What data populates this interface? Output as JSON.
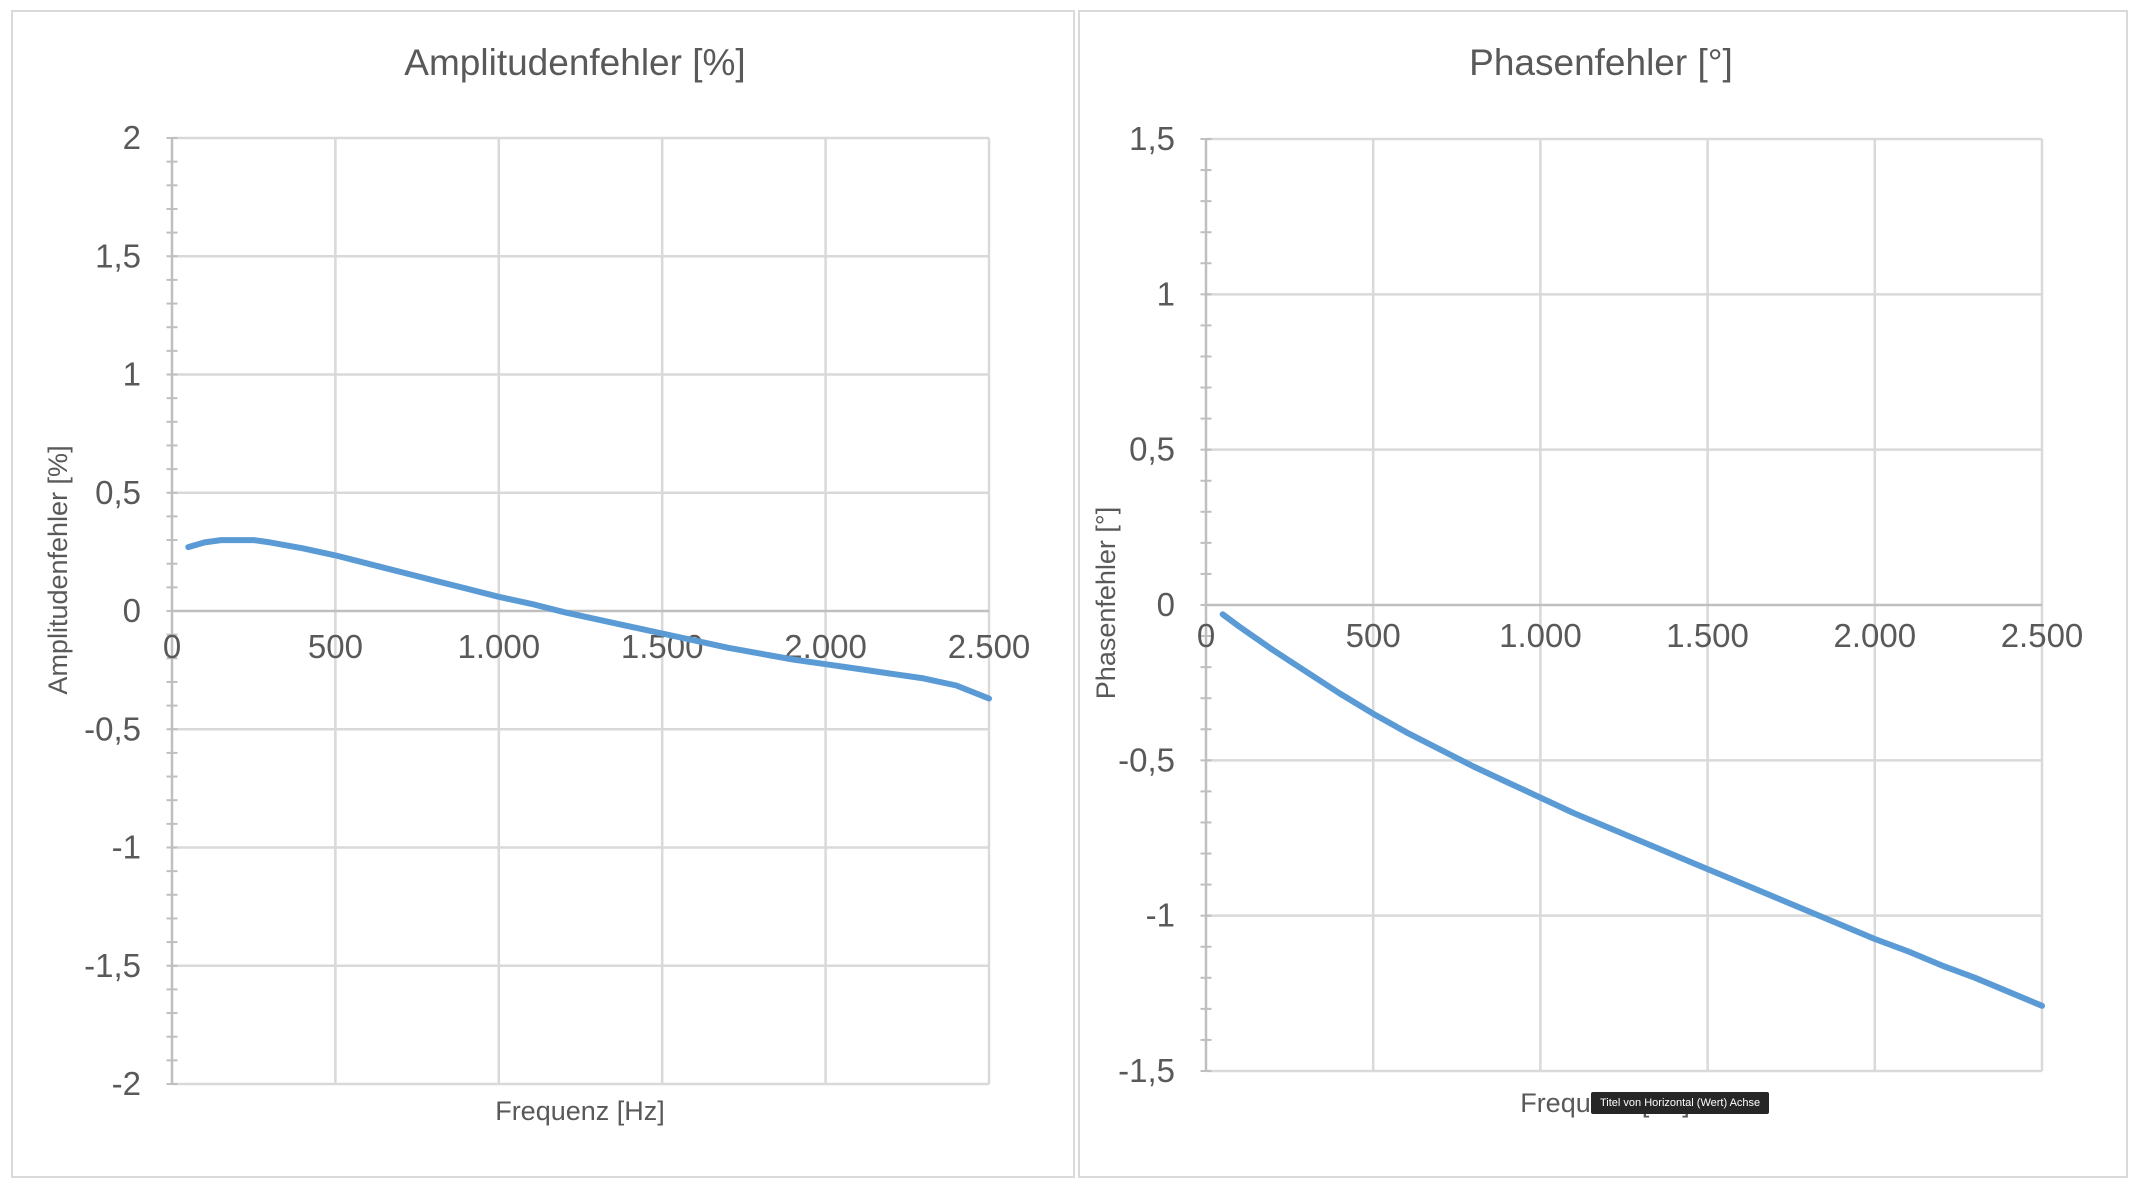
{
  "chart_data": [
    {
      "type": "line",
      "title": "Amplitudenfehler [%]",
      "xlabel": "Frequenz [Hz]",
      "ylabel": "Amplitudenfehler [%]",
      "xlim": [
        0,
        2500
      ],
      "ylim": [
        -2,
        2
      ],
      "xticks": [
        0,
        500,
        1000,
        1500,
        2000,
        2500
      ],
      "xtick_labels": [
        "0",
        "500",
        "1.000",
        "1.500",
        "2.000",
        "2.500"
      ],
      "yticks": [
        2,
        1.5,
        1,
        0.5,
        0,
        -0.5,
        -1,
        -1.5,
        -2
      ],
      "ytick_labels": [
        "2",
        "1,5",
        "1",
        "0,5",
        "0",
        "-0,5",
        "-1",
        "-1,5",
        "-2"
      ],
      "grid": true,
      "series": [
        {
          "name": "Amplitudenfehler",
          "color": "#5b9bd5",
          "x": [
            50,
            100,
            150,
            200,
            250,
            300,
            400,
            500,
            600,
            700,
            800,
            900,
            1000,
            1100,
            1200,
            1300,
            1400,
            1500,
            1600,
            1700,
            1800,
            1900,
            2000,
            2100,
            2200,
            2300,
            2400,
            2500
          ],
          "y": [
            0.27,
            0.29,
            0.3,
            0.3,
            0.3,
            0.29,
            0.265,
            0.235,
            0.2,
            0.165,
            0.13,
            0.095,
            0.06,
            0.03,
            -0.005,
            -0.035,
            -0.065,
            -0.095,
            -0.125,
            -0.155,
            -0.18,
            -0.205,
            -0.225,
            -0.245,
            -0.265,
            -0.285,
            -0.315,
            -0.37
          ]
        }
      ]
    },
    {
      "type": "line",
      "title": "Phasenfehler [°]",
      "xlabel": "Frequenz [Hz]",
      "ylabel": "Phasenfehler [°]",
      "xlim": [
        0,
        2500
      ],
      "ylim": [
        -1.5,
        1.5
      ],
      "xticks": [
        0,
        500,
        1000,
        1500,
        2000,
        2500
      ],
      "xtick_labels": [
        "0",
        "500",
        "1.000",
        "1.500",
        "2.000",
        "2.500"
      ],
      "yticks": [
        1.5,
        1,
        0.5,
        0,
        -0.5,
        -1,
        -1.5
      ],
      "ytick_labels": [
        "1,5",
        "1",
        "0,5",
        "0",
        "-0,5",
        "-1",
        "-1,5"
      ],
      "grid": true,
      "series": [
        {
          "name": "Phasenfehler",
          "color": "#5b9bd5",
          "x": [
            50,
            100,
            200,
            300,
            400,
            500,
            600,
            700,
            800,
            900,
            1000,
            1100,
            1200,
            1300,
            1400,
            1500,
            1600,
            1700,
            1800,
            1900,
            2000,
            2100,
            2200,
            2300,
            2400,
            2500
          ],
          "y": [
            -0.03,
            -0.07,
            -0.145,
            -0.215,
            -0.285,
            -0.35,
            -0.41,
            -0.465,
            -0.52,
            -0.57,
            -0.62,
            -0.67,
            -0.715,
            -0.76,
            -0.805,
            -0.85,
            -0.895,
            -0.94,
            -0.985,
            -1.03,
            -1.075,
            -1.115,
            -1.16,
            -1.2,
            -1.245,
            -1.29
          ]
        }
      ]
    }
  ],
  "tooltip": {
    "text": "Titel von Horizontal (Wert) Achse"
  }
}
